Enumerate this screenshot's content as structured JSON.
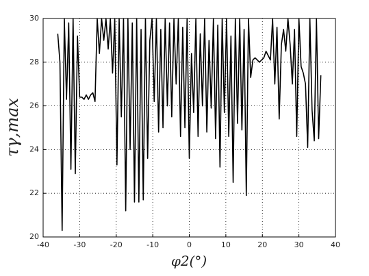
{
  "chart_data": {
    "type": "line",
    "xlabel": "φ2(°)",
    "ylabel": "τγ,max",
    "x": [
      -36,
      -35.4,
      -34.8,
      -34.2,
      -33.6,
      -33,
      -32.4,
      -31.8,
      -31.2,
      -30.6,
      -30,
      -29.4,
      -28.8,
      -28.2,
      -27.6,
      -27,
      -26.4,
      -25.8,
      -25.2,
      -24.6,
      -24,
      -23.4,
      -22.8,
      -22.2,
      -21.6,
      -21,
      -20.4,
      -19.8,
      -19.2,
      -18.6,
      -18,
      -17.4,
      -16.8,
      -16.2,
      -15.6,
      -15,
      -14.4,
      -13.8,
      -13.2,
      -12.6,
      -12,
      -11.4,
      -10.8,
      -10.2,
      -9.6,
      -9,
      -8.4,
      -7.8,
      -7.2,
      -6.6,
      -6,
      -5.4,
      -4.8,
      -4.2,
      -3.6,
      -3,
      -2.4,
      -1.8,
      -1.2,
      -0.6,
      0,
      0.6,
      1.2,
      1.8,
      2.4,
      3,
      3.6,
      4.2,
      4.8,
      5.4,
      6,
      6.6,
      7.2,
      7.8,
      8.4,
      9,
      9.6,
      10.2,
      10.8,
      11.4,
      12,
      12.6,
      13.2,
      13.8,
      14.4,
      15,
      15.6,
      16.2,
      16.8,
      17.4,
      18,
      18.6,
      19.2,
      19.8,
      20.4,
      21,
      21.6,
      22.2,
      22.8,
      23.4,
      24,
      24.6,
      25.2,
      25.8,
      26.4,
      27,
      27.6,
      28.2,
      28.8,
      29.4,
      30,
      30.6,
      31.2,
      31.8,
      32.4,
      33,
      33.6,
      34.2,
      34.8,
      35.4,
      36
    ],
    "series": [
      {
        "color": "#000000",
        "values": [
          29.3,
          28,
          20.3,
          30,
          26.3,
          29.8,
          23.1,
          30,
          22.9,
          29.2,
          26.4,
          26.4,
          26.3,
          26.5,
          26.3,
          26.5,
          26.6,
          26.2,
          30,
          28.4,
          30,
          29,
          30,
          28.6,
          30,
          27.5,
          30,
          23.3,
          30,
          25.5,
          30,
          21.2,
          30,
          24,
          29.8,
          21.6,
          30,
          21.6,
          29.5,
          21.7,
          30,
          23.6,
          29,
          30,
          26.2,
          30,
          24.8,
          29.5,
          25,
          30,
          26,
          29.8,
          25.5,
          30,
          27,
          30,
          24.6,
          29.6,
          25,
          30,
          23.6,
          28.4,
          25.7,
          30,
          24.6,
          29.3,
          26,
          30,
          24.8,
          29,
          25.9,
          30,
          24.5,
          29.7,
          23.2,
          30,
          25.7,
          30,
          24.6,
          29.2,
          22.5,
          30,
          25.2,
          30,
          24.9,
          29.5,
          21.9,
          30,
          27.3,
          28.1,
          28.2,
          28.1,
          28,
          28.1,
          28.2,
          28.5,
          28.3,
          28.1,
          30,
          27,
          29.6,
          25.4,
          28.8,
          29.5,
          28.5,
          30,
          28.8,
          27,
          29.5,
          24.6,
          30,
          27.8,
          27.5,
          27,
          24.1,
          30,
          25.8,
          24.4,
          30,
          24.5,
          27.4
        ]
      }
    ],
    "xlim": [
      -40,
      40
    ],
    "xticks": [
      -40,
      -30,
      -20,
      -10,
      0,
      10,
      20,
      30,
      40
    ],
    "ylim": [
      20,
      30
    ],
    "yticks": [
      20,
      22,
      24,
      26,
      28,
      30
    ],
    "grid": true
  }
}
